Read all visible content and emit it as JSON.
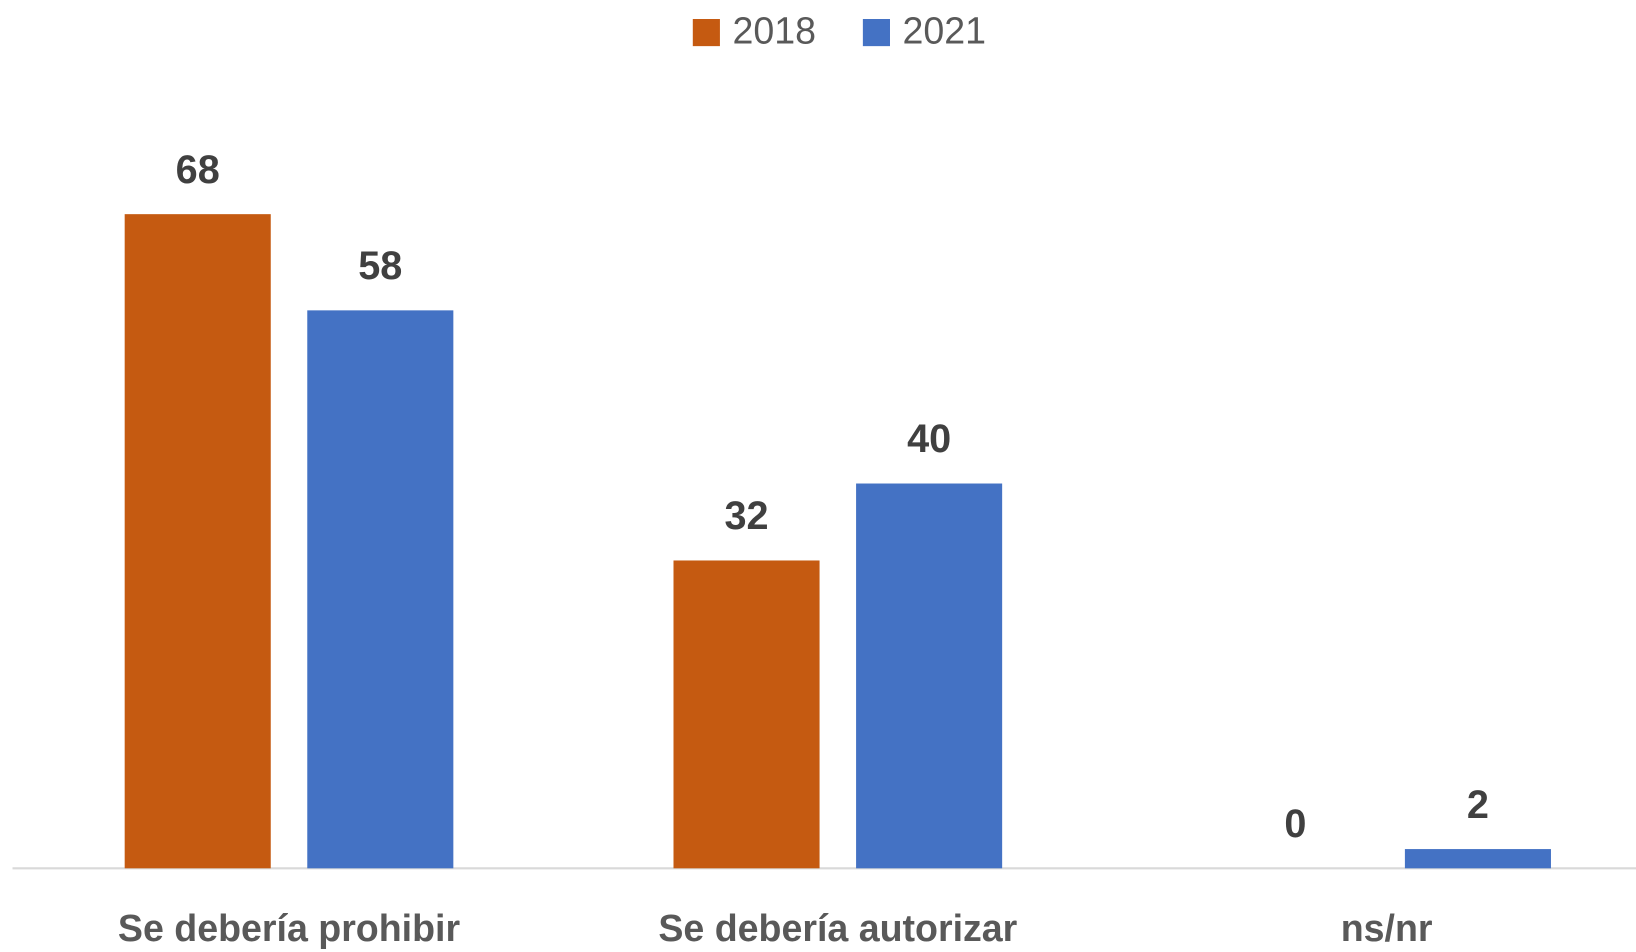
{
  "chart_data": {
    "type": "bar",
    "categories": [
      "Se debería prohibir",
      "Se debería autorizar",
      "ns/nr"
    ],
    "series": [
      {
        "name": "2018",
        "color": "#c55a11",
        "values": [
          68,
          32,
          0
        ]
      },
      {
        "name": "2021",
        "color": "#4472c4",
        "values": [
          58,
          40,
          2
        ]
      }
    ],
    "legend": "top"
  }
}
